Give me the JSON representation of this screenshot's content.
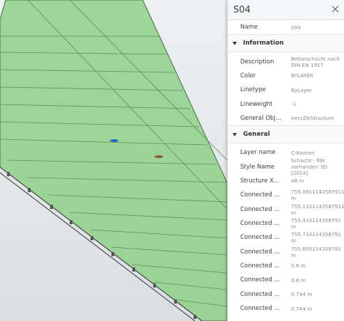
{
  "panel": {
    "title": "S04",
    "items": [
      {
        "label": "Name",
        "value": "S04"
      }
    ],
    "sections": [
      {
        "title": "Information",
        "items": [
          {
            "label": "Description",
            "value": "Betonschacht nach DIN EN 1917"
          },
          {
            "label": "Color",
            "value": "BYLAYER"
          },
          {
            "label": "Linetype",
            "value": "ByLayer"
          },
          {
            "label": "Lineweight",
            "value": "-1"
          },
          {
            "label": "General Obj...",
            "value": "AeccDbStructure"
          }
        ]
      },
      {
        "title": "General",
        "items": [
          {
            "label": "Layer name",
            "value": "C-Knoten"
          },
          {
            "label": "Style Name",
            "value": "Schacht - RW vorhanden 3D [2014]"
          },
          {
            "label": "Structure X...",
            "value": "48 m"
          },
          {
            "label": "Connected ...",
            "value": "755.0611143587911 m"
          },
          {
            "label": "Connected ...",
            "value": "755.1331143587911 m"
          },
          {
            "label": "Connected ...",
            "value": "755.433114358791 m"
          },
          {
            "label": "Connected ...",
            "value": "755.733114358791 m"
          },
          {
            "label": "Connected ...",
            "value": "755.805114358791 m"
          },
          {
            "label": "Connected ...",
            "value": "0.6 m"
          },
          {
            "label": "Connected ...",
            "value": "0.6 m"
          },
          {
            "label": "Connected ...",
            "value": "0.744 m"
          },
          {
            "label": "Connected ...",
            "value": "0.744 m"
          }
        ]
      }
    ]
  }
}
